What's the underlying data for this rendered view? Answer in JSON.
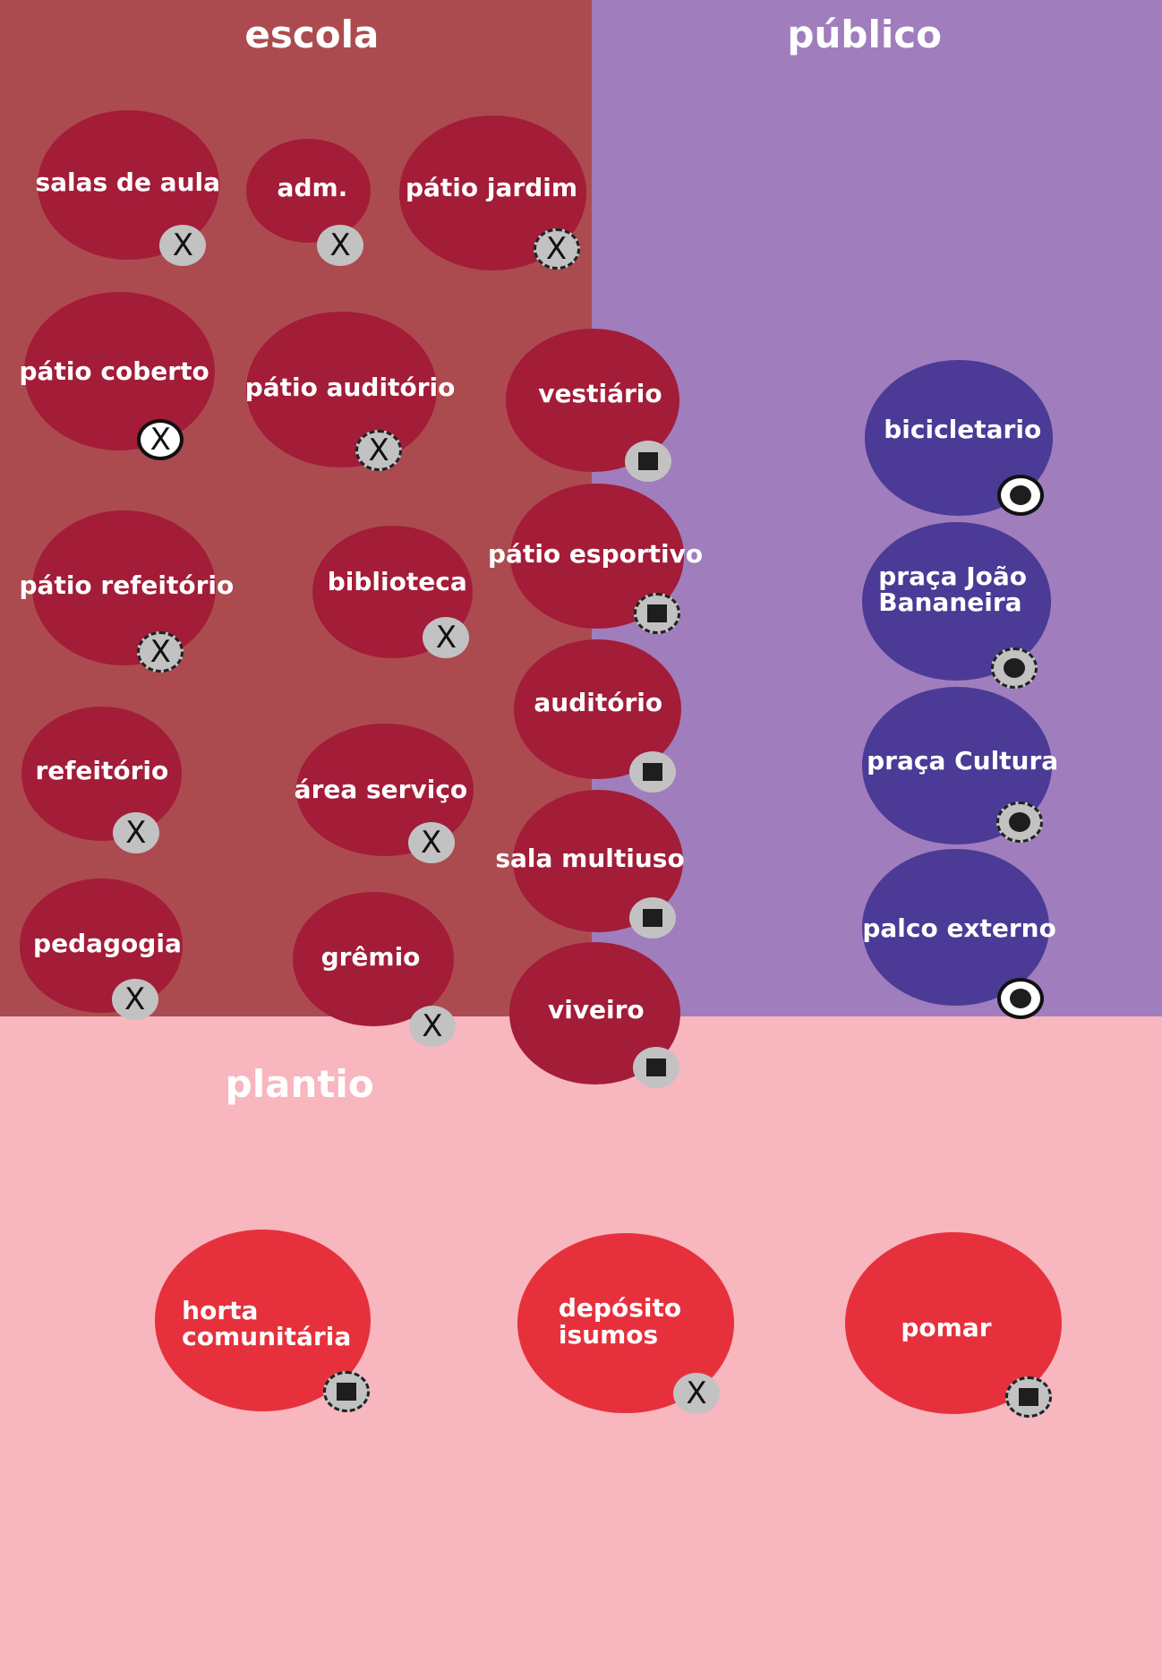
{
  "zones": {
    "escola": {
      "label": "escola",
      "color": "#ac4b4f"
    },
    "publico": {
      "label": "público",
      "color": "#a07dbc"
    },
    "plantio": {
      "label": "plantio",
      "color": "#f8b6be"
    }
  },
  "colors": {
    "school_blob": "#a31c38",
    "public_blob": "#4b3a96",
    "plantio_blob": "#e6313d",
    "badge_fill": "#c2c2c2",
    "badge_mark": "#1e1e1e"
  },
  "legend_note": "",
  "nodes": [
    {
      "label": "salas de aula",
      "zone": "escola",
      "badge": {
        "symbol": "x-icon",
        "style": "solid"
      }
    },
    {
      "label": "adm.",
      "zone": "escola",
      "badge": {
        "symbol": "x-icon",
        "style": "solid"
      }
    },
    {
      "label": "pátio jardim",
      "zone": "escola",
      "badge": {
        "symbol": "x-icon",
        "style": "dashed"
      }
    },
    {
      "label": "pátio coberto",
      "zone": "escola",
      "badge": {
        "symbol": "x-icon",
        "style": "outlined"
      }
    },
    {
      "label": "pátio auditório",
      "zone": "escola",
      "badge": {
        "symbol": "x-icon",
        "style": "dashed"
      }
    },
    {
      "label": "vestiário",
      "zone": "escola",
      "badge": {
        "symbol": "square-icon",
        "style": "solid"
      }
    },
    {
      "label": "bicicletario",
      "zone": "publico",
      "badge": {
        "symbol": "dot-icon",
        "style": "outlined"
      }
    },
    {
      "label": "pátio refeitório",
      "zone": "escola",
      "badge": {
        "symbol": "x-icon",
        "style": "dashed"
      }
    },
    {
      "label": "biblioteca",
      "zone": "escola",
      "badge": {
        "symbol": "x-icon",
        "style": "solid"
      }
    },
    {
      "label": "pátio esportivo",
      "zone": "escola",
      "badge": {
        "symbol": "square-icon",
        "style": "dashed"
      }
    },
    {
      "label": "praça João Bananeira",
      "zone": "publico",
      "badge": {
        "symbol": "dot-icon",
        "style": "dashed"
      }
    },
    {
      "label": "auditório",
      "zone": "escola",
      "badge": {
        "symbol": "square-icon",
        "style": "solid"
      }
    },
    {
      "label": "praça Cultura",
      "zone": "publico",
      "badge": {
        "symbol": "dot-icon",
        "style": "dashed"
      }
    },
    {
      "label": "refeitório",
      "zone": "escola",
      "badge": {
        "symbol": "x-icon",
        "style": "solid"
      }
    },
    {
      "label": "área serviço",
      "zone": "escola",
      "badge": {
        "symbol": "x-icon",
        "style": "solid"
      }
    },
    {
      "label": "sala multiuso",
      "zone": "escola",
      "badge": {
        "symbol": "square-icon",
        "style": "solid"
      }
    },
    {
      "label": "palco externo",
      "zone": "publico",
      "badge": {
        "symbol": "dot-icon",
        "style": "outlined"
      }
    },
    {
      "label": "pedagogia",
      "zone": "escola",
      "badge": {
        "symbol": "x-icon",
        "style": "solid"
      }
    },
    {
      "label": "grêmio",
      "zone": "escola",
      "badge": {
        "symbol": "x-icon",
        "style": "solid"
      }
    },
    {
      "label": "viveiro",
      "zone": "escola",
      "badge": {
        "symbol": "square-icon",
        "style": "solid"
      }
    },
    {
      "label": "horta comunitária",
      "zone": "plantio",
      "badge": {
        "symbol": "square-icon",
        "style": "dashed"
      }
    },
    {
      "label": "depósito isumos",
      "zone": "plantio",
      "badge": {
        "symbol": "x-icon",
        "style": "solid"
      }
    },
    {
      "label": "pomar",
      "zone": "plantio",
      "badge": {
        "symbol": "square-icon",
        "style": "dashed"
      }
    }
  ]
}
